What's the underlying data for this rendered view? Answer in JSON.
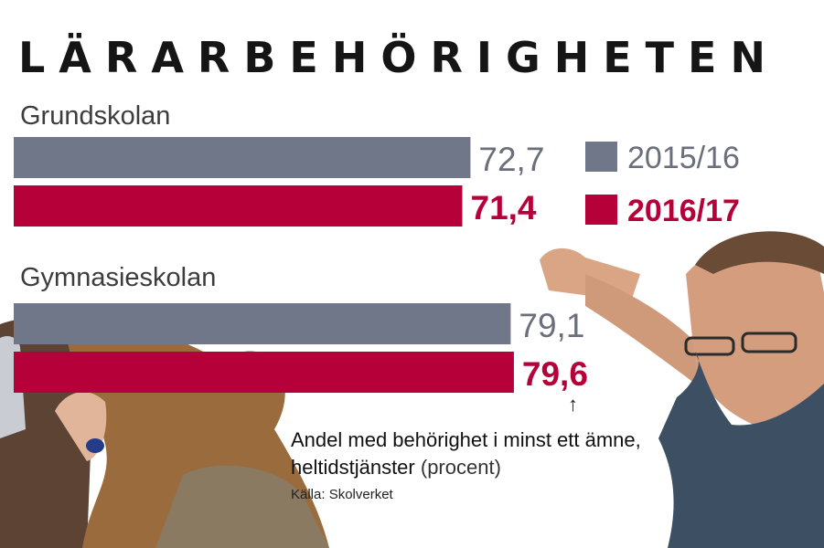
{
  "title": "LÄRARBEHÖRIGHETEN",
  "caption": {
    "text": "Andel med behörighet i minst ett ämne, heltidstjänster",
    "unit": "(procent)"
  },
  "source": "Källa: Skolverket",
  "arrow": "↑",
  "colors": {
    "series_2015": "#707789",
    "series_2016": "#b5003a",
    "label_2015": "#6b6f7c"
  },
  "chart_data": {
    "type": "bar",
    "orientation": "horizontal",
    "categories": [
      "Grundskolan",
      "Gymnasieskolan"
    ],
    "series": [
      {
        "name": "2015/16",
        "values": [
          72.7,
          79.1
        ],
        "labels": [
          "72,7",
          "79,1"
        ]
      },
      {
        "name": "2016/17",
        "values": [
          71.4,
          79.6
        ],
        "labels": [
          "71,4",
          "79,6"
        ]
      }
    ],
    "title": "LÄRARBEHÖRIGHETEN",
    "legend": "right"
  }
}
